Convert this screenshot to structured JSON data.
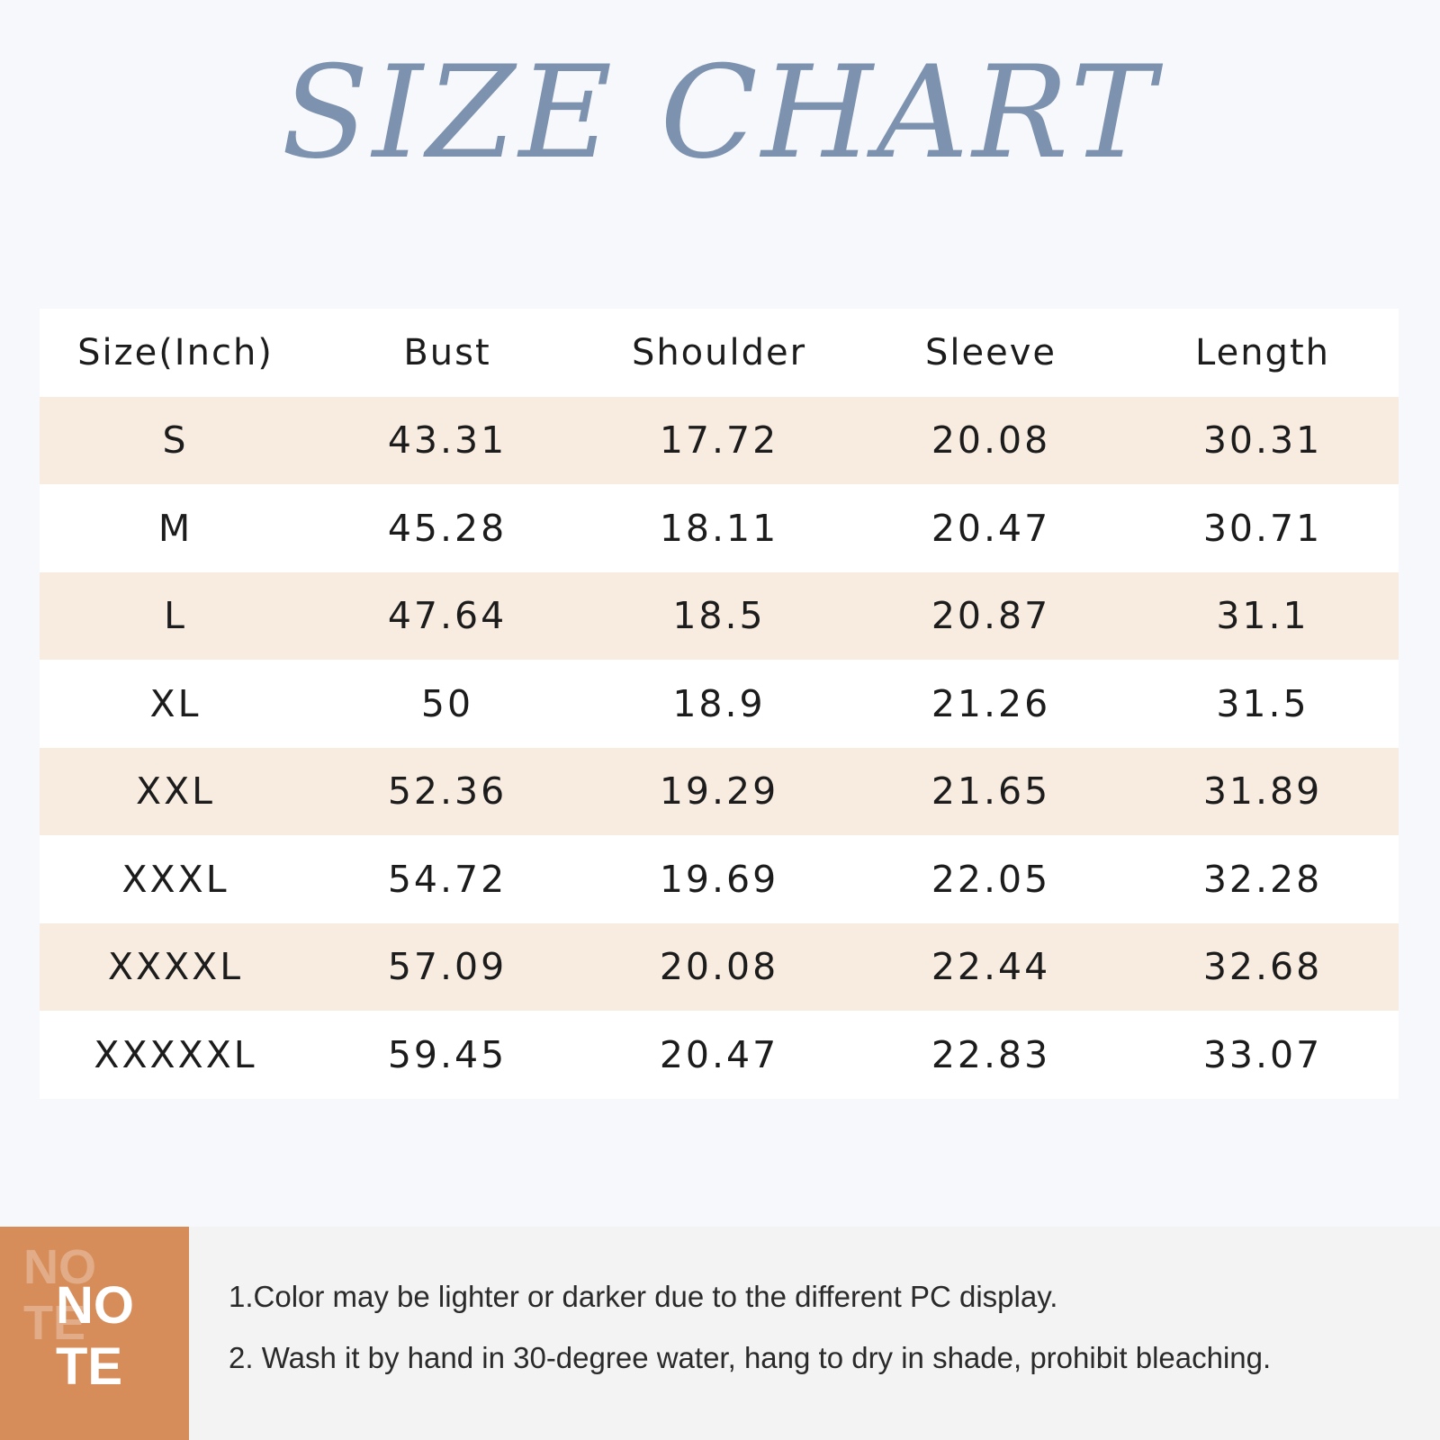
{
  "title": "SIZE CHART",
  "table": {
    "headers": [
      "Size(Inch)",
      "Bust",
      "Shoulder",
      "Sleeve",
      "Length"
    ],
    "rows": [
      [
        "S",
        "43.31",
        "17.72",
        "20.08",
        "30.31"
      ],
      [
        "M",
        "45.28",
        "18.11",
        "20.47",
        "30.71"
      ],
      [
        "L",
        "47.64",
        "18.5",
        "20.87",
        "31.1"
      ],
      [
        "XL",
        "50",
        "18.9",
        "21.26",
        "31.5"
      ],
      [
        "XXL",
        "52.36",
        "19.29",
        "21.65",
        "31.89"
      ],
      [
        "XXXL",
        "54.72",
        "19.69",
        "22.05",
        "32.28"
      ],
      [
        "XXXXL",
        "57.09",
        "20.08",
        "22.44",
        "32.68"
      ],
      [
        "XXXXXL",
        "59.45",
        "20.47",
        "22.83",
        "33.07"
      ]
    ]
  },
  "note": {
    "badge_top": "NO",
    "badge_bottom": "TE",
    "lines": [
      "1.Color may be lighter or darker due to the different PC display.",
      "2. Wash it by hand in 30-degree water, hang to dry in shade, prohibit bleaching."
    ]
  },
  "colors": {
    "title": "#7d92ae",
    "row_shade": "#f8ece1",
    "note_badge": "#d78d5a",
    "background": "#f7f8fb"
  }
}
